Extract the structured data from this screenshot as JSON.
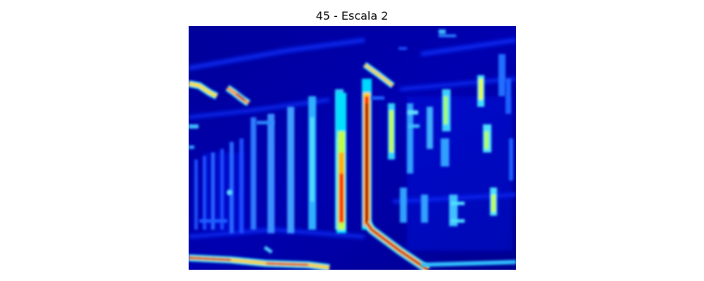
{
  "figure": {
    "title": "45 - Escala 2",
    "colormap": "jet",
    "colors": {
      "low": "#00008f",
      "mid_low": "#0000ff",
      "mid": "#00ffff",
      "mid_high": "#ffff00",
      "high": "#ff0000",
      "max": "#800000"
    },
    "axes_visible": false
  }
}
